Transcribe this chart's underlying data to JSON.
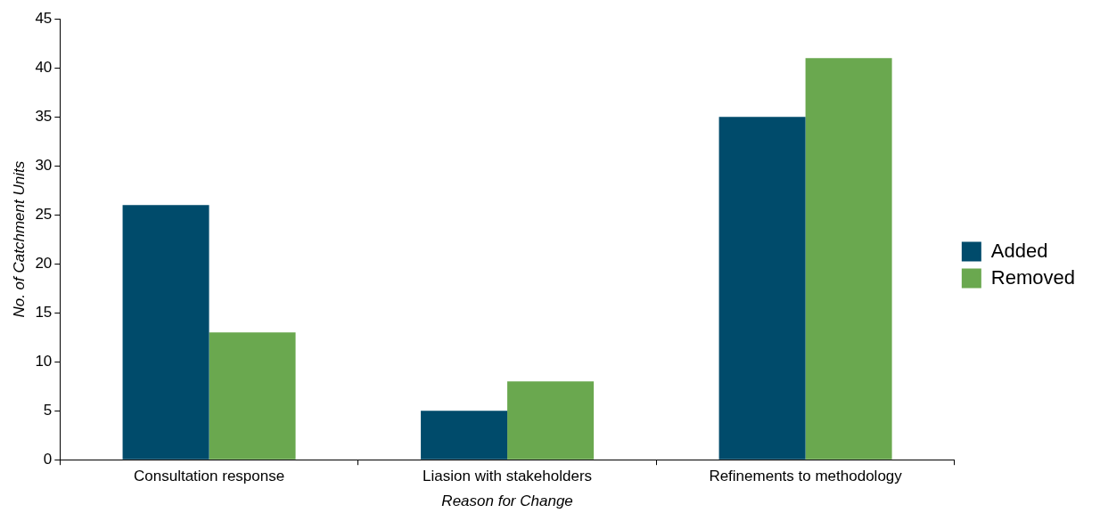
{
  "chart_data": {
    "type": "bar",
    "xlabel": "Reason for Change",
    "ylabel": "No. of Catchment Units",
    "categories": [
      "Consultation response",
      "Liasion with stakeholders",
      "Refinements to methodology"
    ],
    "series": [
      {
        "name": "Added",
        "color": "#004b6b",
        "values": [
          26,
          5,
          35
        ]
      },
      {
        "name": "Removed",
        "color": "#6aa84f",
        "values": [
          13,
          8,
          41
        ]
      }
    ],
    "ylim": [
      0,
      45
    ],
    "yticks": [
      0,
      5,
      10,
      15,
      20,
      25,
      30,
      35,
      40,
      45
    ],
    "legend": "right"
  }
}
